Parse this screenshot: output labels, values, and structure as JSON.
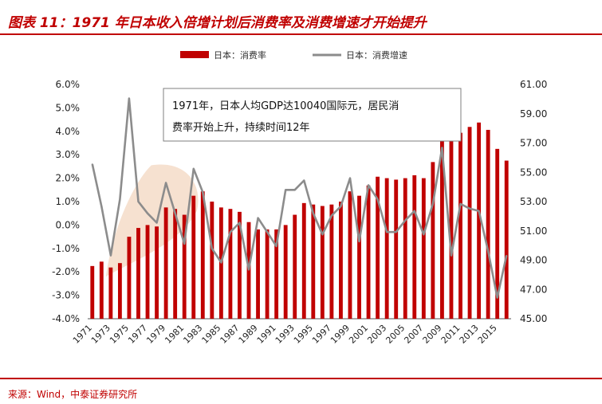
{
  "header": {
    "title": "图表 11：1971 年日本收入倍增计划后消费率及消费增速才开始提升"
  },
  "footer": {
    "source": "来源：Wind，中泰证券研究所"
  },
  "colors": {
    "bar": "#c00000",
    "line": "#8c8c8c",
    "highlight": "#f5dcc8",
    "accent": "#c00000"
  },
  "chart_data": {
    "type": "bar",
    "annotation": {
      "line1": "1971年，日本人均GDP达10040国际元，居民消",
      "line2": "费率开始上升，持续时间12年"
    },
    "legend": [
      {
        "name": "日本：消费率",
        "kind": "bar"
      },
      {
        "name": "日本：消费增速",
        "kind": "line"
      }
    ],
    "x": [
      1971,
      1972,
      1973,
      1974,
      1975,
      1976,
      1977,
      1978,
      1979,
      1980,
      1981,
      1982,
      1983,
      1984,
      1985,
      1986,
      1987,
      1988,
      1989,
      1990,
      1991,
      1992,
      1993,
      1994,
      1995,
      1996,
      1997,
      1998,
      1999,
      2000,
      2001,
      2002,
      2003,
      2004,
      2005,
      2006,
      2007,
      2008,
      2009,
      2010,
      2011,
      2012,
      2013,
      2014,
      2015,
      2016
    ],
    "x_tick_labels": [
      "1971",
      "1973",
      "1975",
      "1977",
      "1979",
      "1981",
      "1983",
      "1985",
      "1987",
      "1989",
      "1991",
      "1993",
      "1995",
      "1997",
      "1999",
      "2001",
      "2003",
      "2005",
      "2007",
      "2009",
      "2011",
      "2013",
      "2015"
    ],
    "left_axis": {
      "ylim": [
        45.0,
        61.0
      ],
      "ticks": [
        45.0,
        47.0,
        49.0,
        51.0,
        53.0,
        55.0,
        57.0,
        59.0,
        61.0
      ],
      "tick_labels": [
        "45.00",
        "47.00",
        "49.00",
        "51.00",
        "53.00",
        "55.00",
        "57.00",
        "59.00",
        "61.00"
      ]
    },
    "right_axis": {
      "ylim": [
        -4.0,
        6.0
      ],
      "ticks": [
        -4.0,
        -3.0,
        -2.0,
        -1.0,
        0.0,
        1.0,
        2.0,
        3.0,
        4.0,
        5.0,
        6.0
      ],
      "tick_labels": [
        "-4.0%",
        "-3.0%",
        "-2.0%",
        "-1.0%",
        "0.0%",
        "1.0%",
        "2.0%",
        "3.0%",
        "4.0%",
        "5.0%",
        "6.0%"
      ]
    },
    "series": [
      {
        "name": "日本：消费率",
        "type": "bar",
        "axis": "left",
        "values": [
          48.6,
          48.9,
          48.5,
          48.8,
          50.6,
          51.2,
          51.4,
          51.3,
          52.6,
          52.5,
          52.1,
          53.4,
          53.7,
          53.0,
          52.6,
          52.5,
          52.3,
          51.6,
          51.1,
          51.1,
          51.1,
          51.4,
          52.1,
          52.9,
          52.8,
          52.7,
          52.8,
          53.0,
          53.7,
          53.4,
          54.1,
          54.7,
          54.6,
          54.5,
          54.6,
          54.8,
          54.6,
          55.7,
          58.0,
          57.6,
          57.7,
          58.1,
          58.4,
          57.9,
          56.6,
          55.8
        ]
      },
      {
        "name": "日本：消费增速",
        "type": "line",
        "axis": "right",
        "values": [
          2.6,
          0.8,
          -1.3,
          1.1,
          5.4,
          1.0,
          0.5,
          0.1,
          1.8,
          0.5,
          -0.8,
          2.4,
          1.4,
          -1.0,
          -1.6,
          -0.3,
          0.1,
          -1.9,
          0.3,
          -0.3,
          -0.9,
          1.5,
          1.5,
          1.9,
          0.5,
          -0.4,
          0.4,
          0.8,
          2.0,
          -0.7,
          1.7,
          1.1,
          -0.3,
          -0.3,
          0.2,
          0.6,
          -0.4,
          0.9,
          3.3,
          -1.3,
          0.9,
          0.7,
          0.6,
          -1.1,
          -3.1,
          -1.3
        ]
      }
    ]
  }
}
